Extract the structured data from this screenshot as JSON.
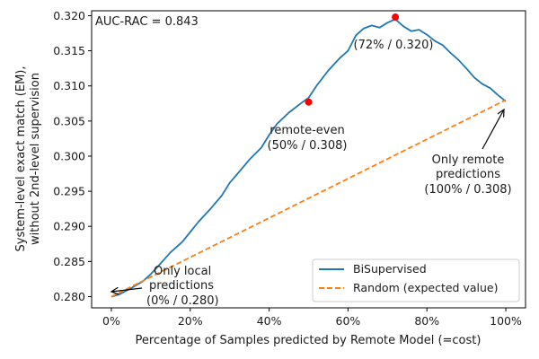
{
  "chart_data": {
    "type": "line",
    "title": "",
    "xlabel": "Percentage of Samples predicted by Remote Model (=cost)",
    "ylabel": [
      "System-level exact match (EM),",
      "without 2nd-level supervision"
    ],
    "xlim": [
      -0.05,
      1.05
    ],
    "ylim": [
      0.2784,
      0.3207
    ],
    "x_ticks": [
      0,
      0.2,
      0.4,
      0.6,
      0.8,
      1.0
    ],
    "x_tick_labels": [
      "0%",
      "20%",
      "40%",
      "60%",
      "80%",
      "100%"
    ],
    "y_ticks": [
      0.28,
      0.285,
      0.29,
      0.295,
      0.3,
      0.305,
      0.31,
      0.315,
      0.32
    ],
    "y_tick_labels": [
      "0.280",
      "0.285",
      "0.290",
      "0.295",
      "0.300",
      "0.305",
      "0.310",
      "0.315",
      "0.320"
    ],
    "grid": false,
    "legend_position": "lower right",
    "series": [
      {
        "name": "BiSupervised",
        "color": "#1f77b4",
        "style": "solid",
        "x": [
          0,
          0.02,
          0.05,
          0.08,
          0.1,
          0.12,
          0.15,
          0.18,
          0.2,
          0.22,
          0.25,
          0.28,
          0.3,
          0.32,
          0.35,
          0.38,
          0.4,
          0.42,
          0.45,
          0.48,
          0.5,
          0.52,
          0.55,
          0.58,
          0.6,
          0.62,
          0.64,
          0.66,
          0.68,
          0.7,
          0.72,
          0.74,
          0.76,
          0.78,
          0.8,
          0.82,
          0.84,
          0.86,
          0.88,
          0.9,
          0.92,
          0.94,
          0.96,
          0.98,
          1.0
        ],
        "y": [
          0.28,
          0.2803,
          0.2812,
          0.2822,
          0.2832,
          0.2844,
          0.2863,
          0.2878,
          0.2892,
          0.2906,
          0.2924,
          0.2944,
          0.2962,
          0.2975,
          0.2995,
          0.3012,
          0.303,
          0.3046,
          0.3062,
          0.3075,
          0.3083,
          0.31,
          0.3122,
          0.314,
          0.315,
          0.3172,
          0.3182,
          0.3186,
          0.3183,
          0.319,
          0.3195,
          0.3185,
          0.3178,
          0.318,
          0.3173,
          0.3164,
          0.3158,
          0.3147,
          0.3137,
          0.3125,
          0.3112,
          0.3103,
          0.3097,
          0.3087,
          0.3078
        ]
      },
      {
        "name": "Random (expected value)",
        "color": "#ff7f0e",
        "style": "dashed",
        "x": [
          0,
          1.0
        ],
        "y": [
          0.28,
          0.308
        ]
      }
    ],
    "highlight_points": [
      {
        "x": 0.5,
        "y": 0.3077,
        "color": "#ff0000"
      },
      {
        "x": 0.72,
        "y": 0.3198,
        "color": "#ff0000"
      }
    ],
    "annotations": [
      {
        "text": "AUC-RAC = 0.843"
      },
      {
        "text": "(72% / 0.320)"
      },
      {
        "lines": [
          "remote-even",
          "(50% / 0.308)"
        ]
      },
      {
        "lines": [
          "Only remote",
          "predictions",
          "(100% / 0.308)"
        ],
        "arrow_to": [
          1.0,
          0.3078
        ]
      },
      {
        "lines": [
          "Only local",
          "predictions",
          "(0% / 0.280)"
        ],
        "arrow_to": [
          0.0,
          0.28
        ]
      }
    ]
  }
}
